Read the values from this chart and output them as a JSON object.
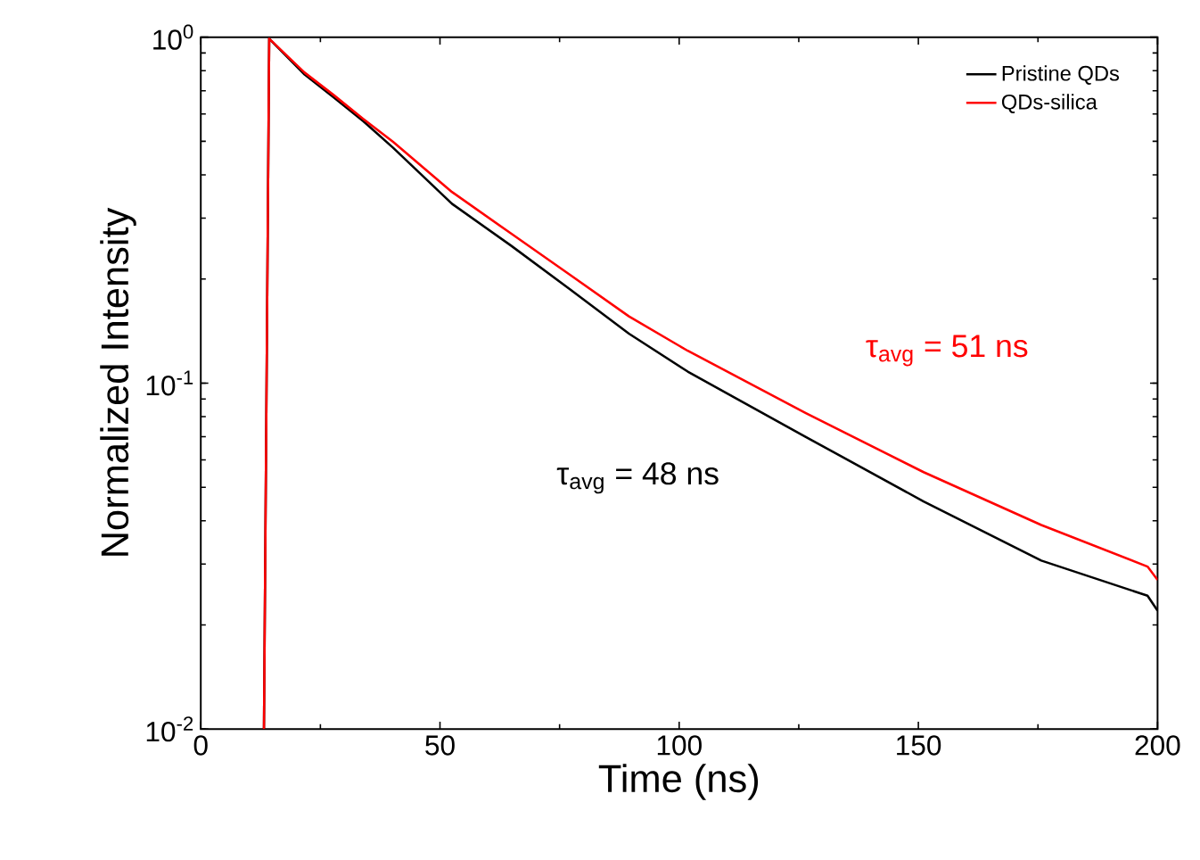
{
  "chart_data": {
    "type": "line",
    "xlabel": "Time (ns)",
    "ylabel": "Normalized Intensity",
    "xlim": [
      0,
      200
    ],
    "xticks": [
      0,
      50,
      100,
      150,
      200
    ],
    "ylim": [
      0.01,
      1
    ],
    "yticks": [
      {
        "value": 0.01,
        "label": "10$^{-2}$"
      },
      {
        "value": 0.1,
        "label": "10$^{-1}$"
      },
      {
        "value": 1,
        "label": "10$^{0}$"
      }
    ],
    "log": "y",
    "legend": "top right",
    "marker": "none",
    "line_style": "solid",
    "series": [
      {
        "name": "Pristine QDs",
        "color": "#000000",
        "x": [
          13.2,
          14.3,
          21.7,
          27.8,
          34.0,
          40.2,
          52.5,
          64.8,
          77.1,
          89.5,
          101.8,
          126.4,
          151.1,
          175.7,
          197.9,
          200
        ],
        "values": [
          0.01,
          0.99,
          0.78,
          0.67,
          0.571,
          0.479,
          0.33,
          0.25,
          0.187,
          0.139,
          0.108,
          0.07,
          0.0455,
          0.0307,
          0.0243,
          0.022
        ]
      },
      {
        "name": "QDs-silica",
        "color": "#ff0000",
        "x": [
          13.2,
          14.3,
          21.7,
          27.8,
          34.0,
          40.2,
          52.5,
          64.8,
          77.1,
          89.5,
          101.8,
          126.4,
          151.1,
          175.7,
          197.9,
          200
        ],
        "values": [
          0.01,
          0.99,
          0.79,
          0.68,
          0.58,
          0.498,
          0.357,
          0.271,
          0.206,
          0.156,
          0.124,
          0.082,
          0.0553,
          0.0389,
          0.0295,
          0.027
        ]
      }
    ],
    "annotations": [
      "τ$_{avg}$ = 48 ns",
      "τ$_{avg}$ = 51 ns"
    ]
  }
}
